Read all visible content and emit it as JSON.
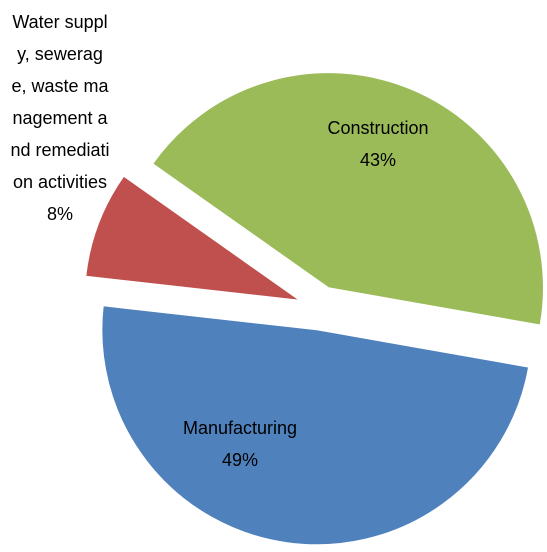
{
  "chart_data": {
    "type": "pie",
    "categories": [
      "Manufacturing",
      "Water supply, sewerage, waste management and remediation activities",
      "Construction"
    ],
    "values": [
      49,
      8,
      43
    ],
    "value_labels": [
      "49%",
      "8%",
      "43%"
    ],
    "colors": [
      "#4f81bd",
      "#c0504d",
      "#9bbb59"
    ],
    "exploded": true
  }
}
